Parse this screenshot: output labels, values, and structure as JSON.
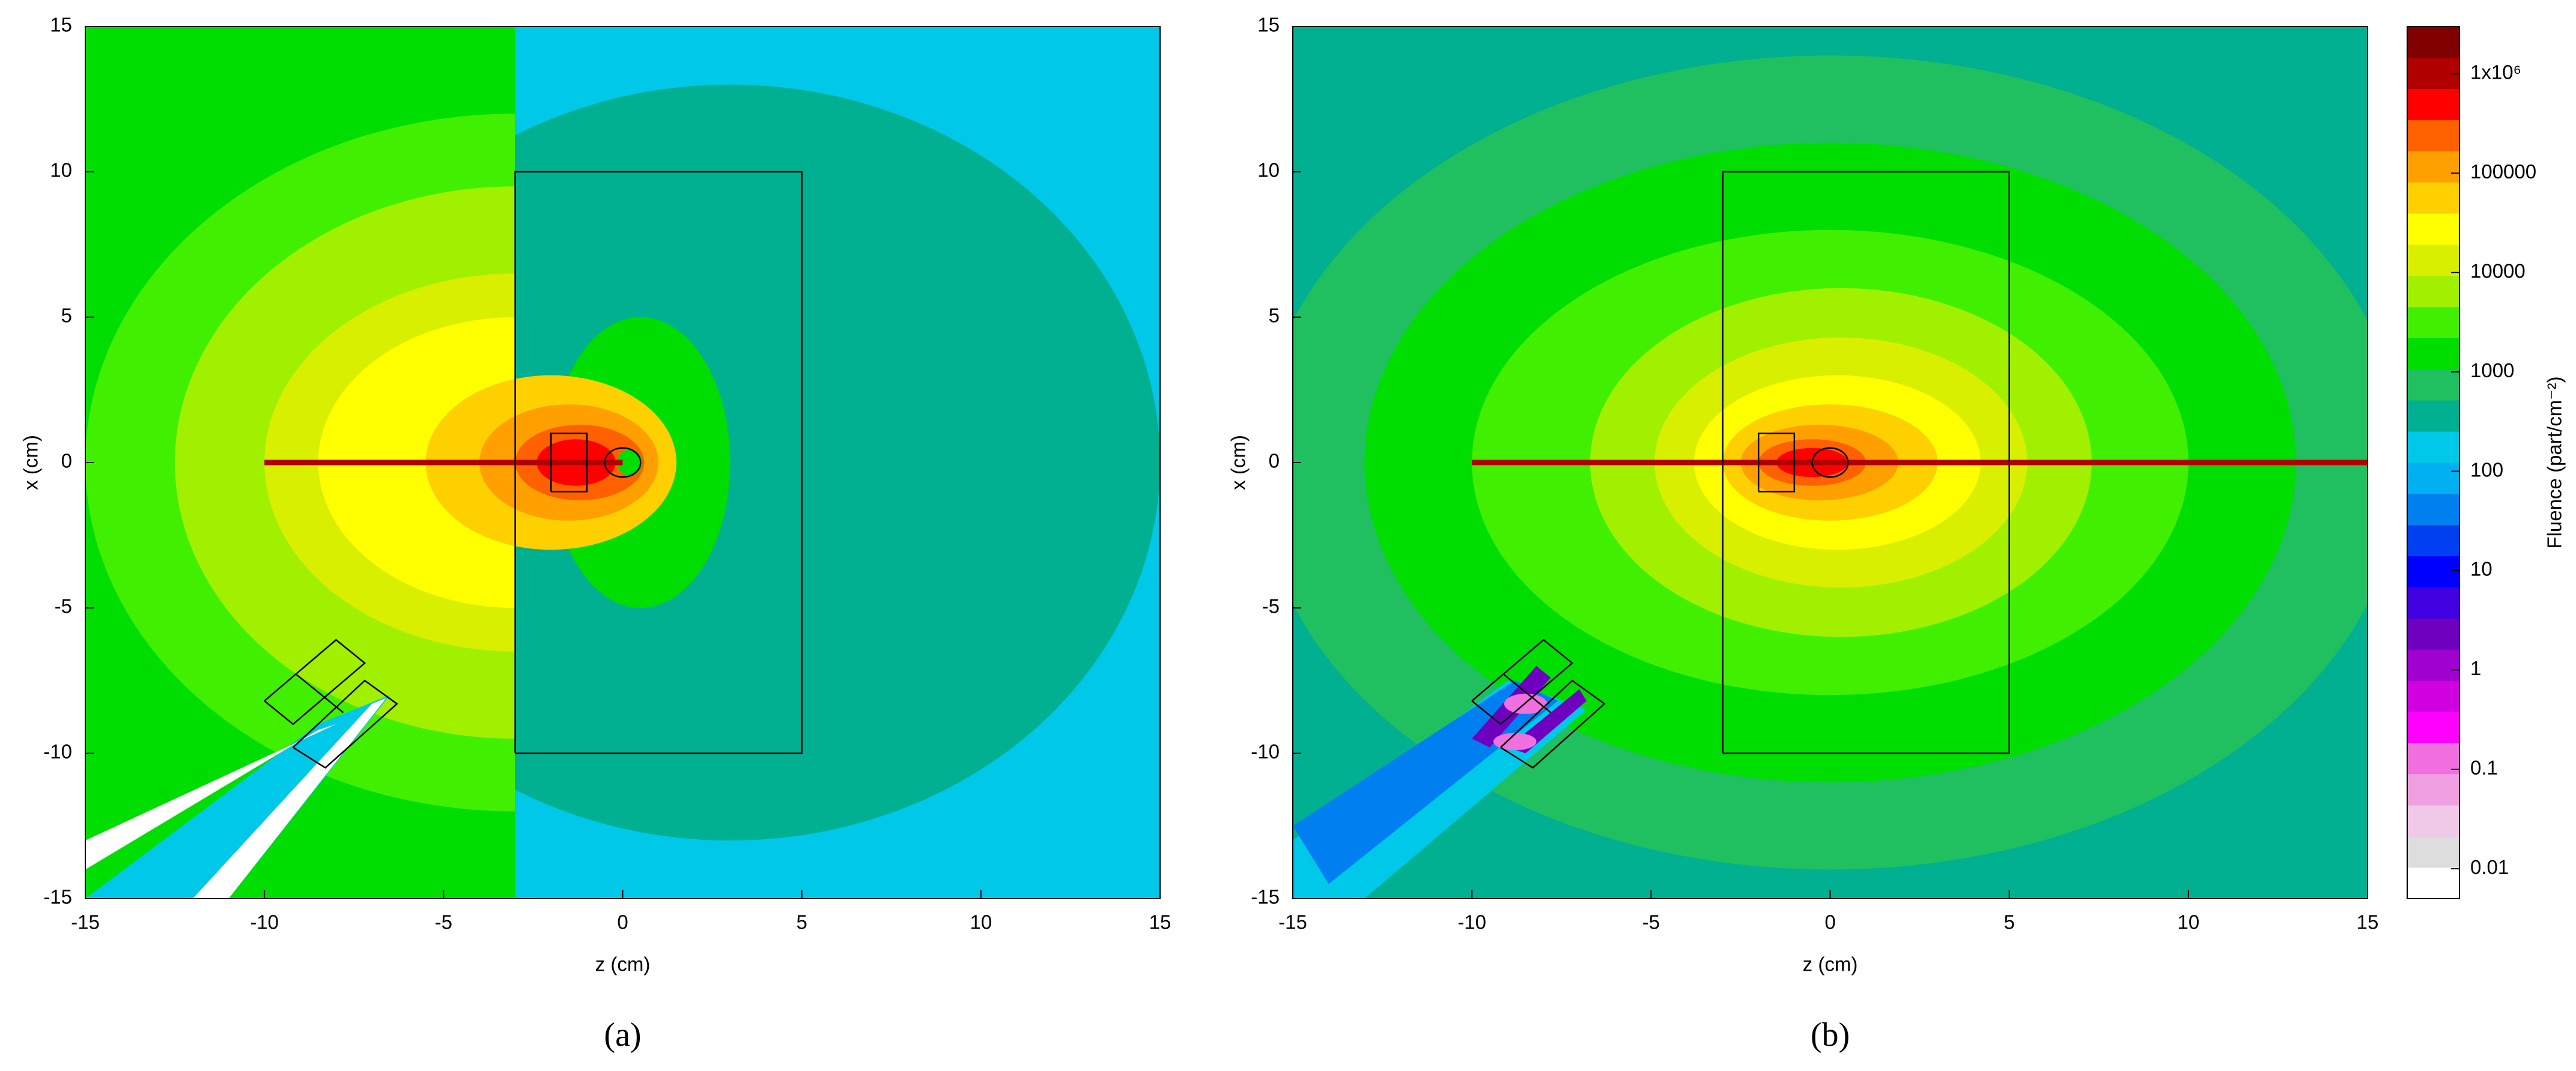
{
  "chart_data": [
    {
      "type": "heatmap",
      "xlabel": "z (cm)",
      "ylabel": "x (cm)",
      "caption": "(a)",
      "xlim": [
        -15,
        15
      ],
      "ylim": [
        -15,
        15
      ],
      "xticks": [
        -15,
        -10,
        -5,
        0,
        5,
        10,
        15
      ],
      "yticks": [
        -15,
        -10,
        -5,
        0,
        5,
        10,
        15
      ]
    },
    {
      "type": "heatmap",
      "xlabel": "z (cm)",
      "ylabel": "x (cm)",
      "caption": "(b)",
      "xlim": [
        -15,
        15
      ],
      "ylim": [
        -15,
        15
      ],
      "xticks": [
        -15,
        -10,
        -5,
        0,
        5,
        10,
        15
      ],
      "yticks": [
        -15,
        -10,
        -5,
        0,
        5,
        10,
        15
      ]
    },
    {
      "type": "colorbar",
      "label": "Fluence (part/cm⁻²)",
      "log": true,
      "ylim": [
        0.005,
        3000000
      ],
      "yticks": [
        0.01,
        0.1,
        1,
        10,
        100,
        1000,
        10000,
        100000,
        {
          "value": 1000000,
          "label": "1x10⁶"
        }
      ],
      "colors": [
        "#ffffff",
        "#dddddd",
        "#f0c8e8",
        "#f0a0e0",
        "#f070e0",
        "#ff00ff",
        "#d000e0",
        "#a000d0",
        "#7000c0",
        "#4000e0",
        "#0000ff",
        "#0040f0",
        "#0080f0",
        "#00b0f0",
        "#00c8e8",
        "#00b090",
        "#20c060",
        "#00dd00",
        "#40f000",
        "#a0f000",
        "#d8f000",
        "#ffff00",
        "#ffd000",
        "#ffa000",
        "#ff6000",
        "#ff0000",
        "#b00000",
        "#800000"
      ]
    }
  ]
}
